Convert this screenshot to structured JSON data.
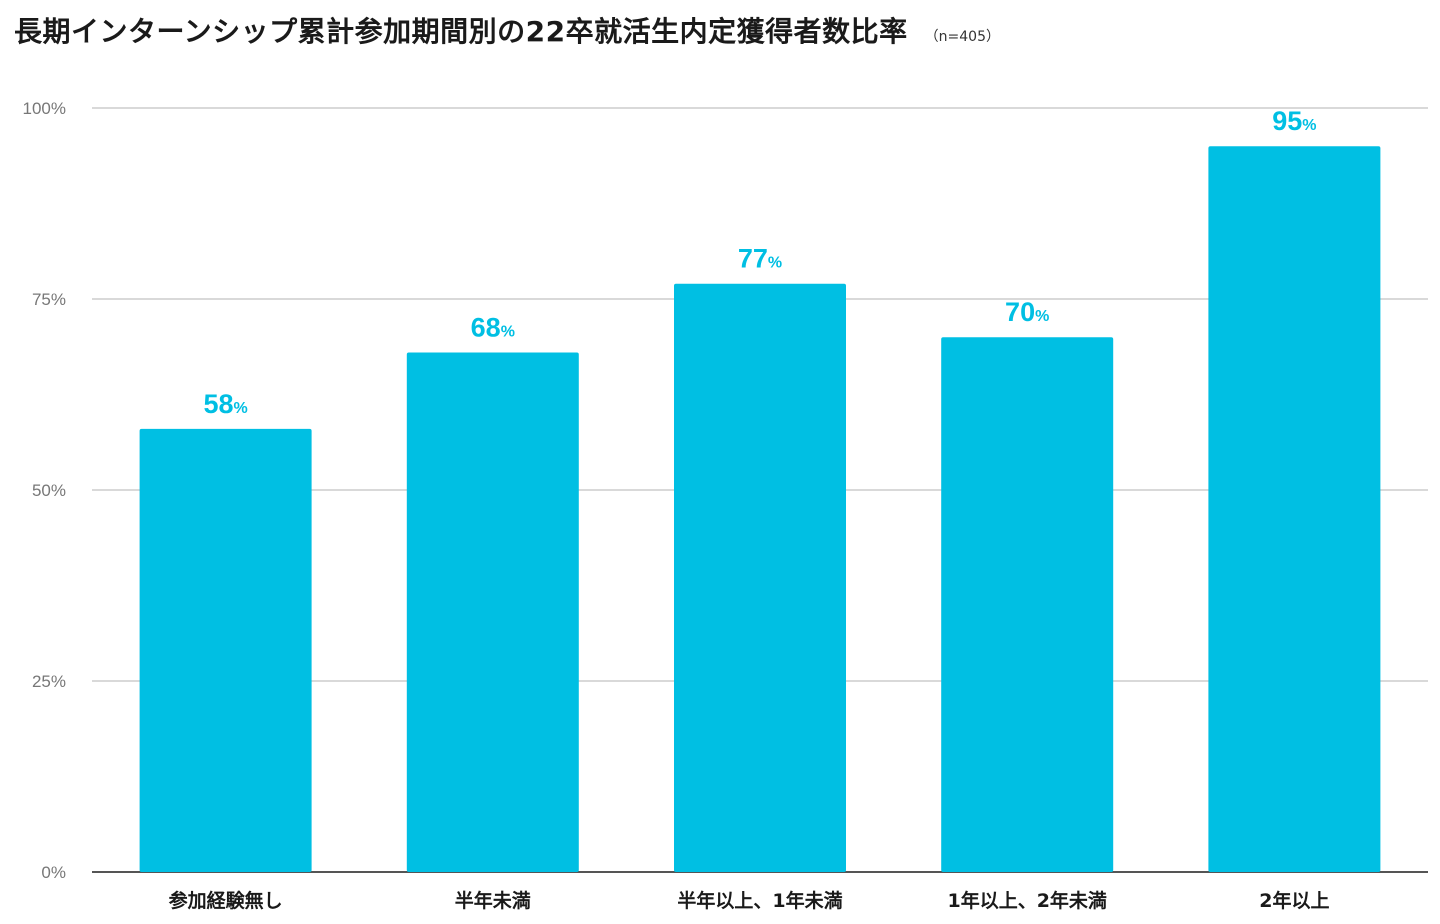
{
  "colors": {
    "bar": "#00BFE3",
    "label": "#00BFE3",
    "grid": "#d9d9d9",
    "axis": "#555555"
  },
  "chart_data": {
    "type": "bar",
    "title": "長期インターンシップ累計参加期間別の22卒就活生内定獲得者数比率",
    "subtitle": "（n=405）",
    "xlabel": "",
    "ylabel": "",
    "categories": [
      "参加経験無し",
      "半年未満",
      "半年以上、1年未満",
      "1年以上、2年未満",
      "2年以上"
    ],
    "values": [
      58,
      68,
      77,
      70,
      95
    ],
    "value_unit": "%",
    "ylim": [
      0,
      100
    ],
    "yticks": [
      0,
      25,
      50,
      75,
      100
    ],
    "ytick_labels": [
      "0%",
      "25%",
      "50%",
      "75%",
      "100%"
    ],
    "grid": true,
    "legend": "none"
  }
}
